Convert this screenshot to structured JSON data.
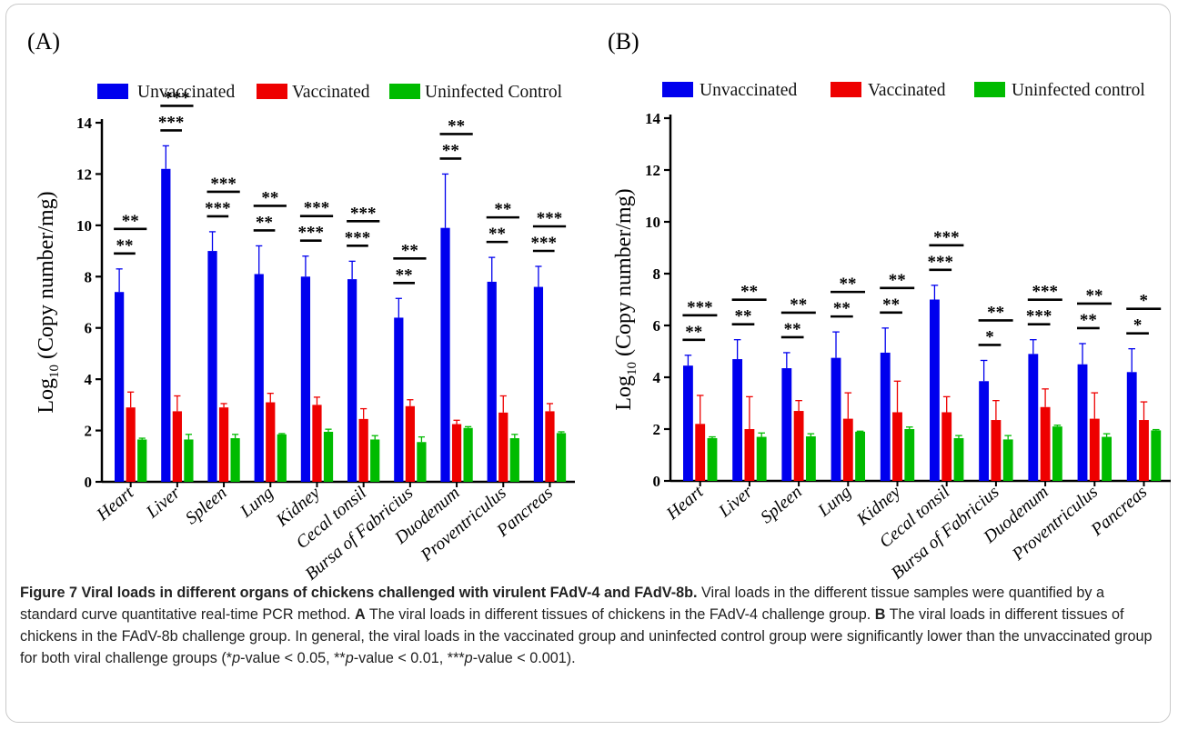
{
  "chart_data": [
    {
      "type": "bar",
      "panel_label": "(A)",
      "ylabel": "Log10 (Copy number/mg)",
      "ylabel_base": "Log",
      "ylabel_sub": "10",
      "ylabel_rest": " (Copy number/mg)",
      "ylim": [
        0,
        14
      ],
      "yticks": [
        "0",
        "2",
        "4",
        "6",
        "8",
        "10",
        "12",
        "14"
      ],
      "legend_position": "top",
      "categories": [
        "Heart",
        "Liver",
        "Spleen",
        "Lung",
        "Kidney",
        "Cecal tonsil",
        "Bursa of Fabricius",
        "Duodenum",
        "Proventriculus",
        "Pancreas"
      ],
      "series": [
        {
          "name": "Unvaccinated",
          "color": "#0000ee",
          "values": [
            7.4,
            12.2,
            9.0,
            8.1,
            8.0,
            7.9,
            6.4,
            9.9,
            7.8,
            7.6
          ],
          "errors": [
            0.9,
            0.9,
            0.75,
            1.1,
            0.8,
            0.7,
            0.75,
            2.1,
            0.95,
            0.8
          ]
        },
        {
          "name": "Vaccinated",
          "color": "#ee0000",
          "values": [
            2.9,
            2.75,
            2.9,
            3.1,
            3.0,
            2.45,
            2.95,
            2.25,
            2.7,
            2.75
          ],
          "errors": [
            0.6,
            0.6,
            0.15,
            0.35,
            0.3,
            0.4,
            0.25,
            0.15,
            0.65,
            0.3
          ]
        },
        {
          "name": "Uninfected Control",
          "color": "#00bb00",
          "values": [
            1.65,
            1.65,
            1.7,
            1.85,
            1.95,
            1.65,
            1.55,
            2.1,
            1.7,
            1.9
          ],
          "errors": [
            0.05,
            0.2,
            0.15,
            0.03,
            0.1,
            0.15,
            0.2,
            0.05,
            0.15,
            0.05
          ]
        }
      ],
      "significance_vaccinated": [
        "**",
        "***",
        "***",
        "**",
        "***",
        "***",
        "**",
        "**",
        "**",
        "***"
      ],
      "significance_control": [
        "**",
        "***",
        "***",
        "**",
        "***",
        "***",
        "**",
        "**",
        "**",
        "***"
      ]
    },
    {
      "type": "bar",
      "panel_label": "(B)",
      "ylabel": "Log10 (Copy number/mg)",
      "ylabel_base": "Log",
      "ylabel_sub": "10",
      "ylabel_rest": " (Copy number/mg)",
      "ylim": [
        0,
        14
      ],
      "yticks": [
        "0",
        "2",
        "4",
        "6",
        "8",
        "10",
        "12",
        "14"
      ],
      "legend_position": "top",
      "categories": [
        "Heart",
        "Liver",
        "Spleen",
        "Lung",
        "Kidney",
        "Cecal tonsil",
        "Bursa of Fabricius",
        "Duodenum",
        "Proventriculus",
        "Pancreas"
      ],
      "series": [
        {
          "name": "Unvaccinated",
          "color": "#0000ee",
          "values": [
            4.45,
            4.7,
            4.35,
            4.75,
            4.95,
            7.0,
            3.85,
            4.9,
            4.5,
            4.2
          ],
          "errors": [
            0.4,
            0.75,
            0.6,
            1.0,
            0.95,
            0.55,
            0.8,
            0.55,
            0.8,
            0.9
          ]
        },
        {
          "name": "Vaccinated",
          "color": "#ee0000",
          "values": [
            2.2,
            2.0,
            2.7,
            2.4,
            2.65,
            2.65,
            2.35,
            2.85,
            2.4,
            2.35
          ],
          "errors": [
            1.1,
            1.25,
            0.4,
            1.0,
            1.2,
            0.6,
            0.75,
            0.7,
            1.0,
            0.7
          ]
        },
        {
          "name": "Uninfected control",
          "color": "#00bb00",
          "values": [
            1.65,
            1.7,
            1.72,
            1.9,
            2.0,
            1.65,
            1.6,
            2.1,
            1.7,
            1.95
          ],
          "errors": [
            0.05,
            0.15,
            0.1,
            0.02,
            0.08,
            0.1,
            0.15,
            0.05,
            0.12,
            0.03
          ]
        }
      ],
      "significance_vaccinated": [
        "**",
        "**",
        "**",
        "**",
        "**",
        "***",
        "*",
        "***",
        "**",
        "*"
      ],
      "significance_control": [
        "***",
        "**",
        "**",
        "**",
        "**",
        "***",
        "**",
        "***",
        "**",
        "*"
      ]
    }
  ],
  "caption": {
    "title": "Figure 7  Viral loads in different organs of chickens challenged with virulent FAdV-4 and FAdV-8b.",
    "text1": " Viral loads in the different tissue samples were quantified by a standard curve quantitative real-time PCR method. ",
    "label_a": "A",
    "text2": " The viral loads in different tissues of chickens in the FAdV-4 challenge group. ",
    "label_b": "B",
    "text3": " The viral loads in different tissues of chickens in the FAdV-8b challenge group. In general, the viral loads in the vaccinated group and uninfected control group were significantly lower than the unvaccinated group for both viral challenge groups (*",
    "p1": "p",
    "text4": "-value < 0.05, **",
    "p2": "p",
    "text5": "-value < 0.01, ***",
    "p3": "p",
    "text6": "-value < 0.001)."
  }
}
